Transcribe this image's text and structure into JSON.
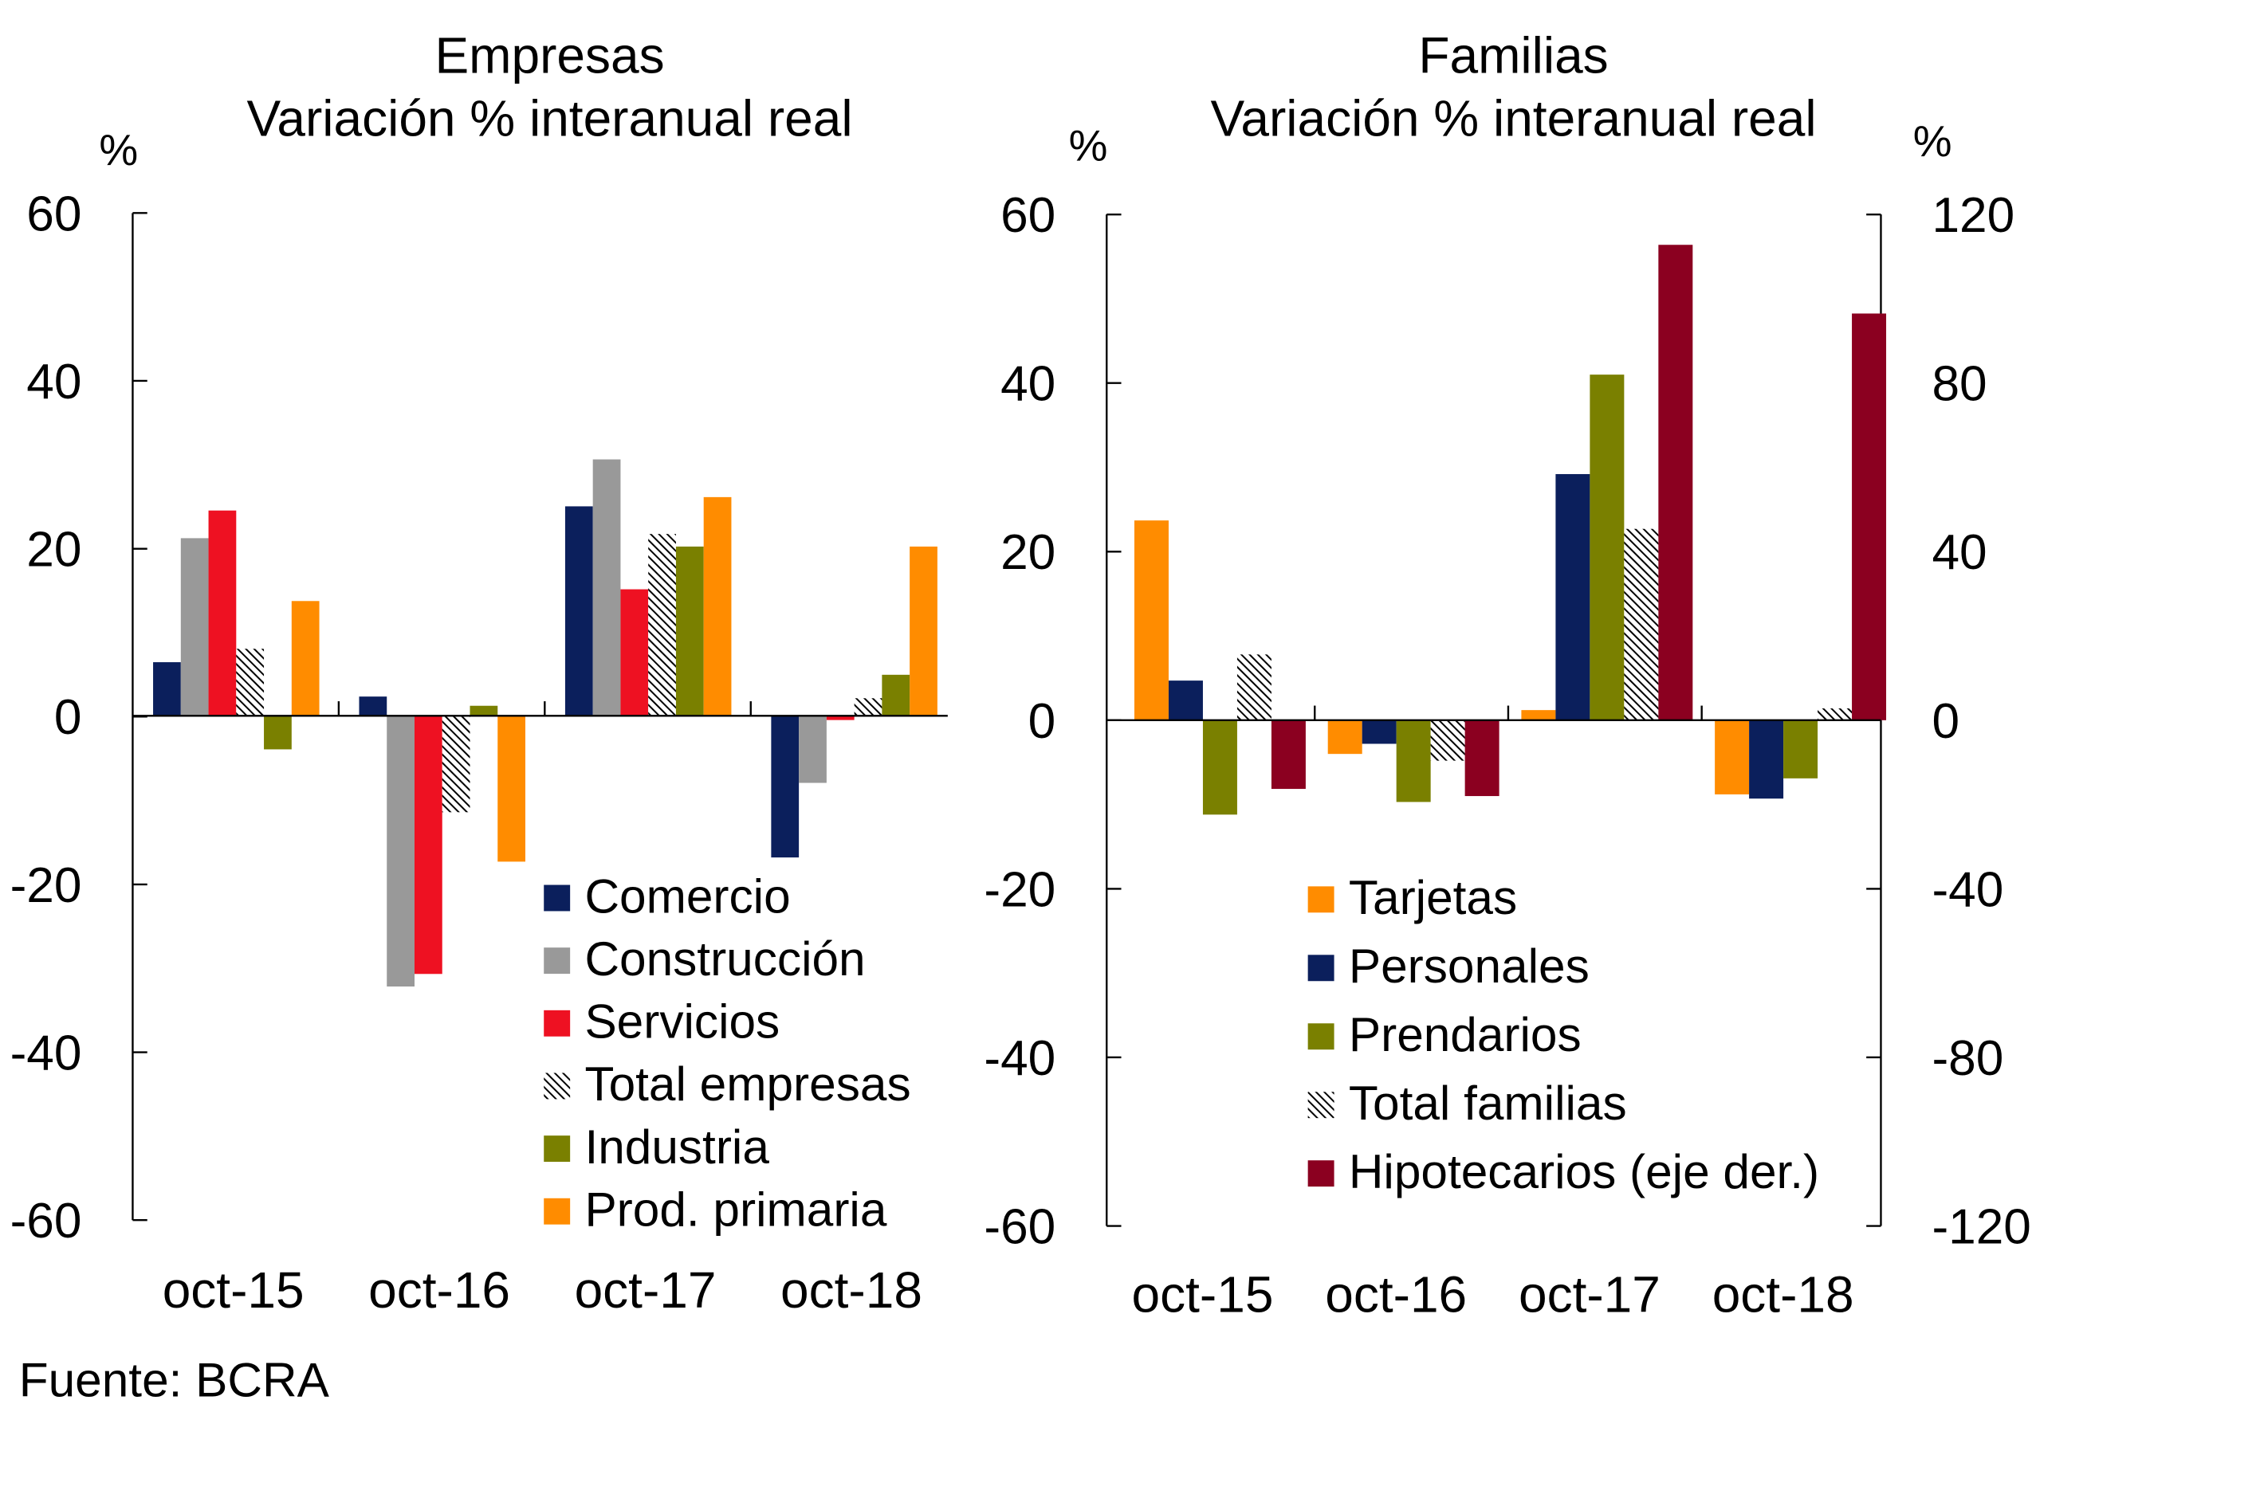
{
  "source": "Fuente: BCRA",
  "chart_data": [
    {
      "type": "bar",
      "title": "Empresas",
      "subtitle": "Variación % interanual real",
      "ylabel": "%",
      "ylim": [
        -60,
        60
      ],
      "yticks": [
        "60",
        "40",
        "20",
        "0",
        "-20",
        "-40",
        "-60"
      ],
      "categories": [
        "oct-15",
        "oct-16",
        "oct-17",
        "oct-18"
      ],
      "legend_position": "bottom-right",
      "series": [
        {
          "name": "Comercio",
          "color": "#0b1f5c",
          "values": [
            6.4,
            2.3,
            25.0,
            -16.9
          ]
        },
        {
          "name": "Construcción",
          "color": "#999999",
          "values": [
            21.2,
            -32.3,
            30.6,
            -8.0
          ]
        },
        {
          "name": "Servicios",
          "color": "#ee1122",
          "values": [
            24.5,
            -30.8,
            15.1,
            -0.5
          ]
        },
        {
          "name": "Total empresas",
          "color": "hatch",
          "values": [
            8.0,
            -11.5,
            21.7,
            2.1
          ]
        },
        {
          "name": "Industria",
          "color": "#7a8000",
          "values": [
            -4.0,
            1.2,
            20.2,
            4.9
          ]
        },
        {
          "name": "Prod. primaria",
          "color": "#ff8c00",
          "values": [
            13.7,
            -17.4,
            26.1,
            20.2
          ]
        }
      ]
    },
    {
      "type": "bar",
      "title": "Familias",
      "subtitle": "Variación % interanual real",
      "ylabel": "%",
      "ylabel_right": "%",
      "ylim": [
        -60,
        60
      ],
      "ylim_right": [
        -120,
        120
      ],
      "yticks": [
        "60",
        "40",
        "20",
        "0",
        "-20",
        "-40",
        "-60"
      ],
      "yticks_right": [
        "120",
        "80",
        "40",
        "0",
        "-40",
        "-80",
        "-120"
      ],
      "categories": [
        "oct-15",
        "oct-16",
        "oct-17",
        "oct-18"
      ],
      "legend_position": "bottom-center",
      "series": [
        {
          "name": "Tarjetas",
          "color": "#ff8c00",
          "axis": "left",
          "values": [
            23.7,
            -4.0,
            1.2,
            -8.8
          ]
        },
        {
          "name": "Personales",
          "color": "#0b1f5c",
          "axis": "left",
          "values": [
            4.7,
            -2.8,
            29.2,
            -9.3
          ]
        },
        {
          "name": "Prendarios",
          "color": "#7a8000",
          "axis": "left",
          "values": [
            -11.2,
            -9.7,
            41.0,
            -6.9
          ]
        },
        {
          "name": "Total familias",
          "color": "hatch",
          "axis": "left",
          "values": [
            7.8,
            -4.8,
            22.7,
            1.4
          ]
        },
        {
          "name": "Hipotecarios (eje der.)",
          "color": "#8b0020",
          "axis": "right",
          "values": [
            -16.3,
            -18.0,
            112.8,
            96.5
          ]
        }
      ]
    }
  ]
}
